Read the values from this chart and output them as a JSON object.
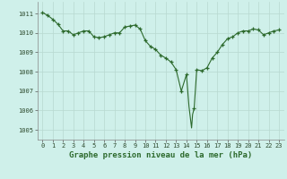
{
  "title": "Graphe pression niveau de la mer (hPa)",
  "bg_color": "#cff0ea",
  "line_color": "#2d6a2d",
  "marker_color": "#2d6a2d",
  "grid_color": "#b8d8d0",
  "xlim": [
    -0.5,
    23.5
  ],
  "ylim": [
    1004.5,
    1011.6
  ],
  "yticks": [
    1005,
    1006,
    1007,
    1008,
    1009,
    1010,
    1011
  ],
  "xticks": [
    0,
    1,
    2,
    3,
    4,
    5,
    6,
    7,
    8,
    9,
    10,
    11,
    12,
    13,
    14,
    15,
    16,
    17,
    18,
    19,
    20,
    21,
    22,
    23
  ],
  "x": [
    0,
    0.5,
    1,
    1.5,
    2,
    2.5,
    3,
    3.5,
    4,
    4.5,
    5,
    5.5,
    6,
    6.5,
    7,
    7.5,
    8,
    8.5,
    9,
    9.5,
    10,
    10.5,
    11,
    11.5,
    12,
    12.5,
    13,
    13.5,
    14,
    14.25,
    14.5,
    14.6,
    14.75,
    15,
    15.5,
    16,
    16.5,
    17,
    17.5,
    18,
    18.5,
    19,
    19.5,
    20,
    20.5,
    21,
    21.5,
    22,
    22.5,
    23
  ],
  "y": [
    1011.05,
    1010.9,
    1010.7,
    1010.45,
    1010.1,
    1010.1,
    1009.9,
    1010.0,
    1010.1,
    1010.1,
    1009.8,
    1009.75,
    1009.8,
    1009.9,
    1010.0,
    1010.0,
    1010.3,
    1010.35,
    1010.4,
    1010.2,
    1009.6,
    1009.3,
    1009.15,
    1008.85,
    1008.7,
    1008.5,
    1008.1,
    1007.0,
    1007.85,
    1006.2,
    1005.1,
    1005.8,
    1006.1,
    1008.1,
    1008.05,
    1008.2,
    1008.7,
    1009.0,
    1009.4,
    1009.7,
    1009.8,
    1010.0,
    1010.1,
    1010.1,
    1010.2,
    1010.15,
    1009.9,
    1010.0,
    1010.1,
    1010.15
  ],
  "marker_x": [
    0,
    0.5,
    1,
    1.5,
    2,
    2.5,
    3,
    3.5,
    4,
    4.5,
    5,
    5.5,
    6,
    6.5,
    7,
    7.5,
    8,
    8.5,
    9,
    9.5,
    10,
    10.5,
    11,
    11.5,
    12,
    12.5,
    13,
    13.5,
    14,
    14.75,
    15,
    15.5,
    16,
    16.5,
    17,
    17.5,
    18,
    18.5,
    19,
    19.5,
    20,
    20.5,
    21,
    21.5,
    22,
    22.5,
    23
  ],
  "marker_y": [
    1011.05,
    1010.9,
    1010.7,
    1010.45,
    1010.1,
    1010.1,
    1009.9,
    1010.0,
    1010.1,
    1010.1,
    1009.8,
    1009.75,
    1009.8,
    1009.9,
    1010.0,
    1010.0,
    1010.3,
    1010.35,
    1010.4,
    1010.2,
    1009.6,
    1009.3,
    1009.15,
    1008.85,
    1008.7,
    1008.5,
    1008.1,
    1007.0,
    1007.85,
    1006.1,
    1008.1,
    1008.05,
    1008.2,
    1008.7,
    1009.0,
    1009.4,
    1009.7,
    1009.8,
    1010.0,
    1010.1,
    1010.1,
    1010.2,
    1010.15,
    1009.9,
    1010.0,
    1010.1,
    1010.15
  ]
}
